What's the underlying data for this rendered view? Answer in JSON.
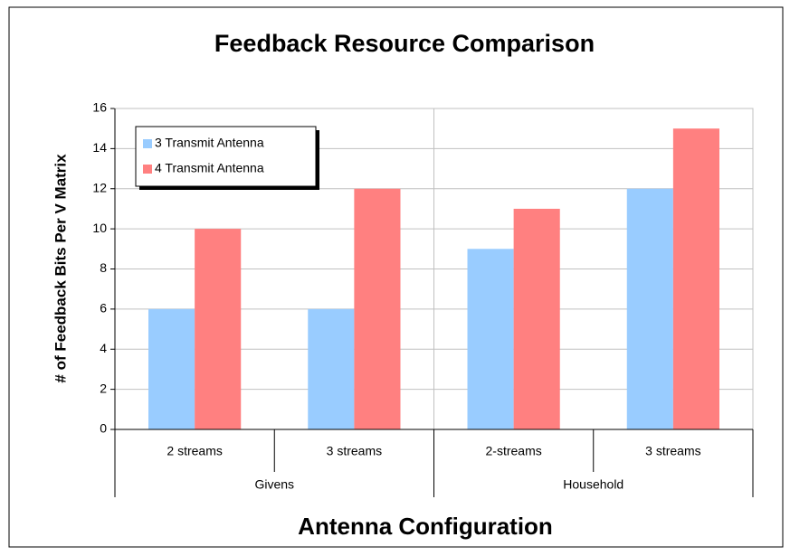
{
  "chart_data": {
    "type": "bar",
    "title": "Feedback Resource Comparison",
    "x_label": "Antenna Configuration",
    "y_label": "# of Feedback Bits Per V Matrix",
    "category_groups": [
      {
        "label": "Givens",
        "categories": [
          "2 streams",
          "3 streams"
        ]
      },
      {
        "label": "Household",
        "categories": [
          "2-streams",
          "3 streams"
        ]
      }
    ],
    "series": [
      {
        "name": "3 Transmit Antenna",
        "color": "#99ccff",
        "values": [
          6,
          6,
          9,
          12
        ]
      },
      {
        "name": "4 Transmit Antenna",
        "color": "#ff8080",
        "values": [
          10,
          12,
          11,
          15
        ]
      }
    ],
    "ylim": [
      0,
      16
    ],
    "yticks": [
      0,
      2,
      4,
      6,
      8,
      10,
      12,
      14,
      16
    ],
    "grid": true,
    "legend": "top-left"
  }
}
